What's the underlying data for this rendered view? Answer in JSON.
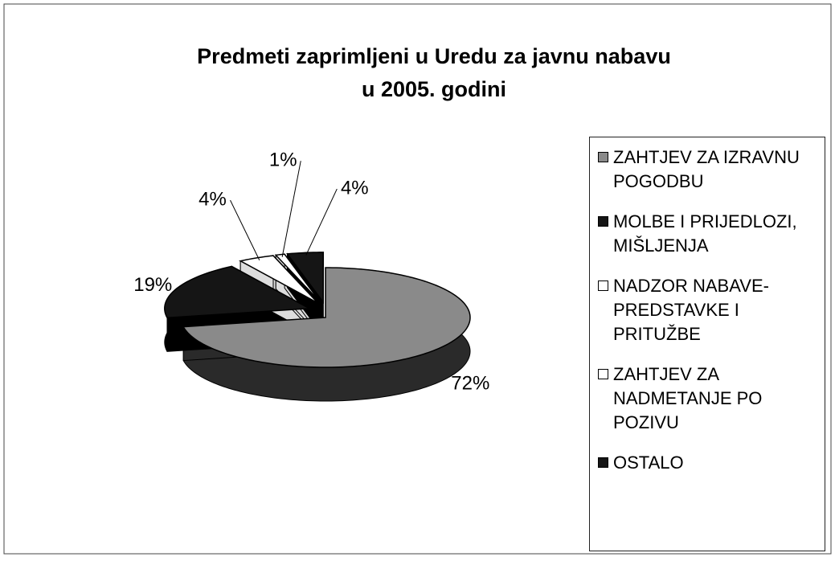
{
  "chart_data": {
    "type": "pie",
    "title": [
      "Predmeti zaprimljeni u Uredu za javnu nabavu",
      "u 2005. godini"
    ],
    "categories": [
      "ZAHTJEV ZA IZRAVNU POGODBU",
      "MOLBE I PRIJEDLOZI, MIŠLJENJA",
      "NADZOR NABAVE-PREDSTAVKE I PRITUŽBE",
      "ZAHTJEV ZA NADMETANJE PO POZIVU",
      "OSTALO"
    ],
    "values": [
      72,
      19,
      4,
      1,
      4
    ],
    "value_labels": [
      "72%",
      "19%",
      "4%",
      "1%",
      "4%"
    ],
    "colors": [
      "#8a8a8a",
      "#151515",
      "#ffffff",
      "#ffffff",
      "#151515"
    ],
    "legend": "right"
  }
}
